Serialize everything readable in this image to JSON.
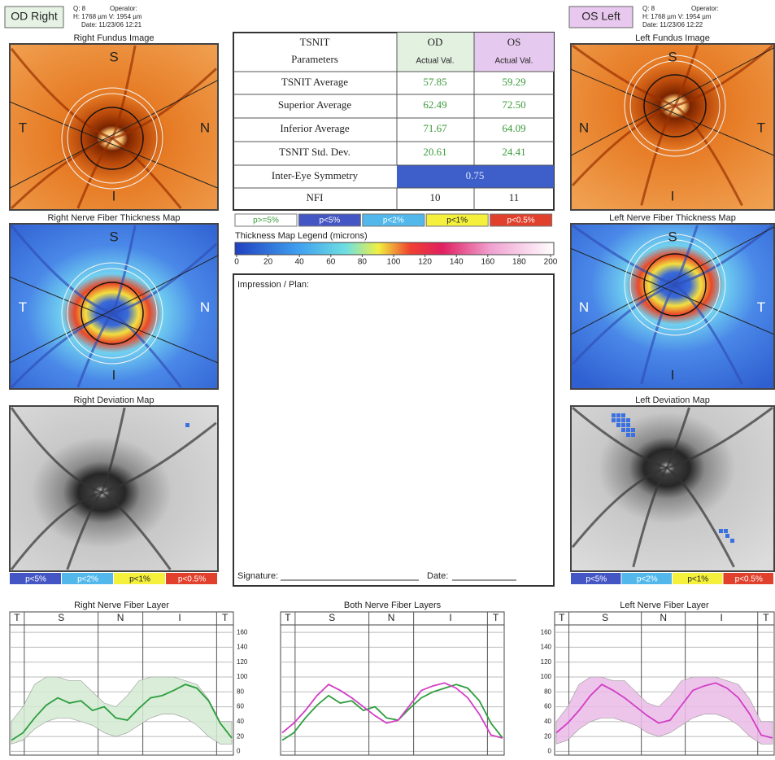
{
  "header": {
    "od": {
      "label": "OD  Right",
      "q": "Q: 8",
      "operator": "Operator:",
      "size": "H: 1768 µm  V: 1954 µm",
      "date": "Date: 11/23/06 12:21"
    },
    "os": {
      "label": "OS  Left",
      "q": "Q: 8",
      "operator": "Operator:",
      "size": "H: 1768 µm  V: 1954 µm",
      "date": "Date: 11/23/06 12:22"
    }
  },
  "panels": {
    "right_fundus": {
      "title": "Right Fundus Image",
      "s": "S",
      "t": "T",
      "n": "N",
      "i": "I"
    },
    "right_thickness": {
      "title": "Right Nerve Fiber Thickness Map",
      "s": "S",
      "t": "T",
      "n": "N",
      "i": "I"
    },
    "right_deviation": {
      "title": "Right Deviation Map"
    },
    "left_fundus": {
      "title": "Left Fundus Image",
      "s": "S",
      "t": "T",
      "n": "N",
      "i": "I"
    },
    "left_thickness": {
      "title": "Left Nerve Fiber Thickness Map",
      "s": "S",
      "t": "T",
      "n": "N",
      "i": "I"
    },
    "left_deviation": {
      "title": "Left Deviation Map"
    }
  },
  "table": {
    "header": [
      [
        "TSNIT",
        "Parameters"
      ],
      [
        "OD",
        "Actual Val."
      ],
      [
        "OS",
        "Actual Val."
      ]
    ],
    "rows": [
      [
        "TSNIT Average",
        "57.85",
        "59.29"
      ],
      [
        "Superior Average",
        "62.49",
        "72.50"
      ],
      [
        "Inferior Average",
        "71.67",
        "64.09"
      ],
      [
        "TSNIT Std. Dev.",
        "20.61",
        "24.41"
      ],
      [
        "Inter-Eye Symmetry",
        "0.75"
      ],
      [
        "NFI",
        "10",
        "11"
      ]
    ]
  },
  "significance_legend": [
    "p>=5%",
    "p<5%",
    "p<2%",
    "p<1%",
    "p<0.5%"
  ],
  "deviation_legend": [
    "p<5%",
    "p<2%",
    "p<1%",
    "p<0.5%"
  ],
  "thickness_legend": {
    "title": "Thickness Map Legend (microns)",
    "ticks": [
      0,
      20,
      40,
      60,
      80,
      100,
      120,
      140,
      160,
      180,
      200
    ]
  },
  "impression": {
    "title": "Impression / Plan:",
    "signature": "Signature:",
    "date": "Date:"
  },
  "chart_data": [
    {
      "type": "line",
      "title": "Right Nerve Fiber Layer",
      "yaxis": "right",
      "sections": [
        "T",
        "S",
        "N",
        "I",
        "T"
      ],
      "ylim": [
        -5,
        170
      ],
      "yticks": [
        0,
        20,
        40,
        60,
        80,
        100,
        120,
        140,
        160
      ],
      "band": {
        "color": "#d3ead3",
        "lower": [
          10,
          15,
          30,
          40,
          45,
          45,
          40,
          35,
          25,
          20,
          25,
          35,
          45,
          50,
          50,
          45,
          35,
          20,
          10,
          10
        ],
        "upper": [
          40,
          60,
          90,
          100,
          100,
          95,
          95,
          80,
          65,
          60,
          75,
          95,
          100,
          100,
          100,
          95,
          90,
          70,
          40,
          40
        ]
      },
      "series": [
        {
          "color": "#2e9e3e",
          "values": [
            15,
            25,
            45,
            62,
            72,
            65,
            68,
            55,
            60,
            45,
            42,
            58,
            72,
            75,
            82,
            90,
            85,
            68,
            38,
            18
          ]
        }
      ]
    },
    {
      "type": "line",
      "title": "Both Nerve Fiber Layers",
      "yaxis": "none",
      "sections": [
        "T",
        "S",
        "N",
        "I",
        "T"
      ],
      "ylim": [
        -5,
        170
      ],
      "yticks": [
        0,
        20,
        40,
        60,
        80,
        100,
        120,
        140,
        160
      ],
      "series": [
        {
          "color": "#2e9e3e",
          "values": [
            15,
            25,
            45,
            62,
            75,
            65,
            68,
            55,
            60,
            45,
            42,
            58,
            72,
            80,
            85,
            90,
            85,
            68,
            38,
            18
          ]
        },
        {
          "color": "#d23ec4",
          "values": [
            25,
            38,
            55,
            75,
            90,
            82,
            72,
            60,
            48,
            38,
            42,
            62,
            82,
            88,
            92,
            85,
            72,
            50,
            22,
            18
          ]
        }
      ]
    },
    {
      "type": "line",
      "title": "Left Nerve Fiber Layer",
      "yaxis": "left",
      "sections": [
        "T",
        "S",
        "N",
        "I",
        "T"
      ],
      "ylim": [
        -5,
        170
      ],
      "yticks": [
        0,
        20,
        40,
        60,
        80,
        100,
        120,
        140,
        160
      ],
      "band": {
        "color": "#ebbce8",
        "lower": [
          10,
          15,
          30,
          40,
          45,
          45,
          40,
          35,
          25,
          20,
          25,
          35,
          45,
          50,
          50,
          45,
          35,
          20,
          10,
          10
        ],
        "upper": [
          40,
          60,
          90,
          100,
          100,
          95,
          95,
          80,
          65,
          60,
          75,
          95,
          100,
          100,
          100,
          95,
          90,
          70,
          40,
          40
        ]
      },
      "series": [
        {
          "color": "#d23ec4",
          "values": [
            25,
            38,
            55,
            75,
            90,
            82,
            72,
            60,
            48,
            38,
            42,
            62,
            82,
            88,
            92,
            85,
            72,
            50,
            22,
            18
          ]
        }
      ]
    }
  ]
}
